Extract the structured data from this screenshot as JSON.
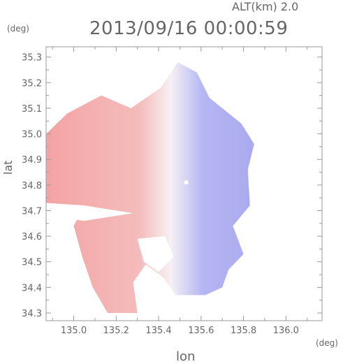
{
  "header": {
    "altitude_label": "ALT(km) 2.0",
    "timestamp": "2013/09/16 00:00:59"
  },
  "chart_data": {
    "type": "heatmap",
    "title": "2013/09/16 00:00:59",
    "subtitle": "ALT(km) 2.0",
    "xlabel": "lon",
    "ylabel": "lat",
    "x_unit": "(deg)",
    "y_unit": "(deg)",
    "xlim": [
      134.87,
      136.17
    ],
    "ylim": [
      34.27,
      35.34
    ],
    "x_ticks": [
      135.0,
      135.2,
      135.4,
      135.6,
      135.8,
      136.0
    ],
    "x_tick_labels": [
      "135.0",
      "135.2",
      "135.4",
      "135.6",
      "135.8",
      "136.0"
    ],
    "y_ticks": [
      34.3,
      34.4,
      34.5,
      34.6,
      34.7,
      34.8,
      34.9,
      35.0,
      35.1,
      35.2,
      35.3
    ],
    "y_tick_labels": [
      "34.3",
      "34.4",
      "34.5",
      "34.6",
      "34.7",
      "34.8",
      "34.9",
      "35.0",
      "35.1",
      "35.2",
      "35.3"
    ],
    "radar_center": {
      "lon": 135.53,
      "lat": 34.81
    },
    "colors": {
      "west_half": "#f4a3a3",
      "east_half": "#a9a9f0",
      "center": "#f6f1f4",
      "axis": "#9a9a9a"
    },
    "grid": false,
    "echo_region": [
      [
        135.49,
        35.28
      ],
      [
        135.58,
        35.24
      ],
      [
        135.64,
        35.14
      ],
      [
        135.7,
        35.1
      ],
      [
        135.79,
        35.04
      ],
      [
        135.85,
        34.96
      ],
      [
        135.82,
        34.86
      ],
      [
        135.83,
        34.72
      ],
      [
        135.75,
        34.64
      ],
      [
        135.8,
        34.53
      ],
      [
        135.73,
        34.47
      ],
      [
        135.7,
        34.4
      ],
      [
        135.62,
        34.37
      ],
      [
        135.48,
        34.37
      ],
      [
        135.42,
        34.44
      ],
      [
        135.34,
        34.49
      ],
      [
        135.28,
        34.42
      ],
      [
        135.3,
        34.3
      ],
      [
        135.16,
        34.3
      ],
      [
        135.09,
        34.4
      ],
      [
        135.04,
        34.52
      ],
      [
        135.0,
        34.64
      ],
      [
        135.05,
        34.72
      ],
      [
        134.87,
        34.73
      ],
      [
        134.87,
        35.0
      ],
      [
        134.97,
        35.08
      ],
      [
        135.13,
        35.15
      ],
      [
        135.27,
        35.1
      ],
      [
        135.41,
        35.18
      ]
    ],
    "gaps": [
      [
        [
          134.87,
          34.73
        ],
        [
          135.05,
          34.72
        ],
        [
          135.28,
          34.69
        ],
        [
          135.05,
          34.66
        ],
        [
          134.87,
          34.68
        ]
      ],
      [
        [
          135.3,
          34.59
        ],
        [
          135.43,
          34.6
        ],
        [
          135.47,
          34.52
        ],
        [
          135.4,
          34.46
        ],
        [
          135.33,
          34.5
        ]
      ]
    ]
  }
}
